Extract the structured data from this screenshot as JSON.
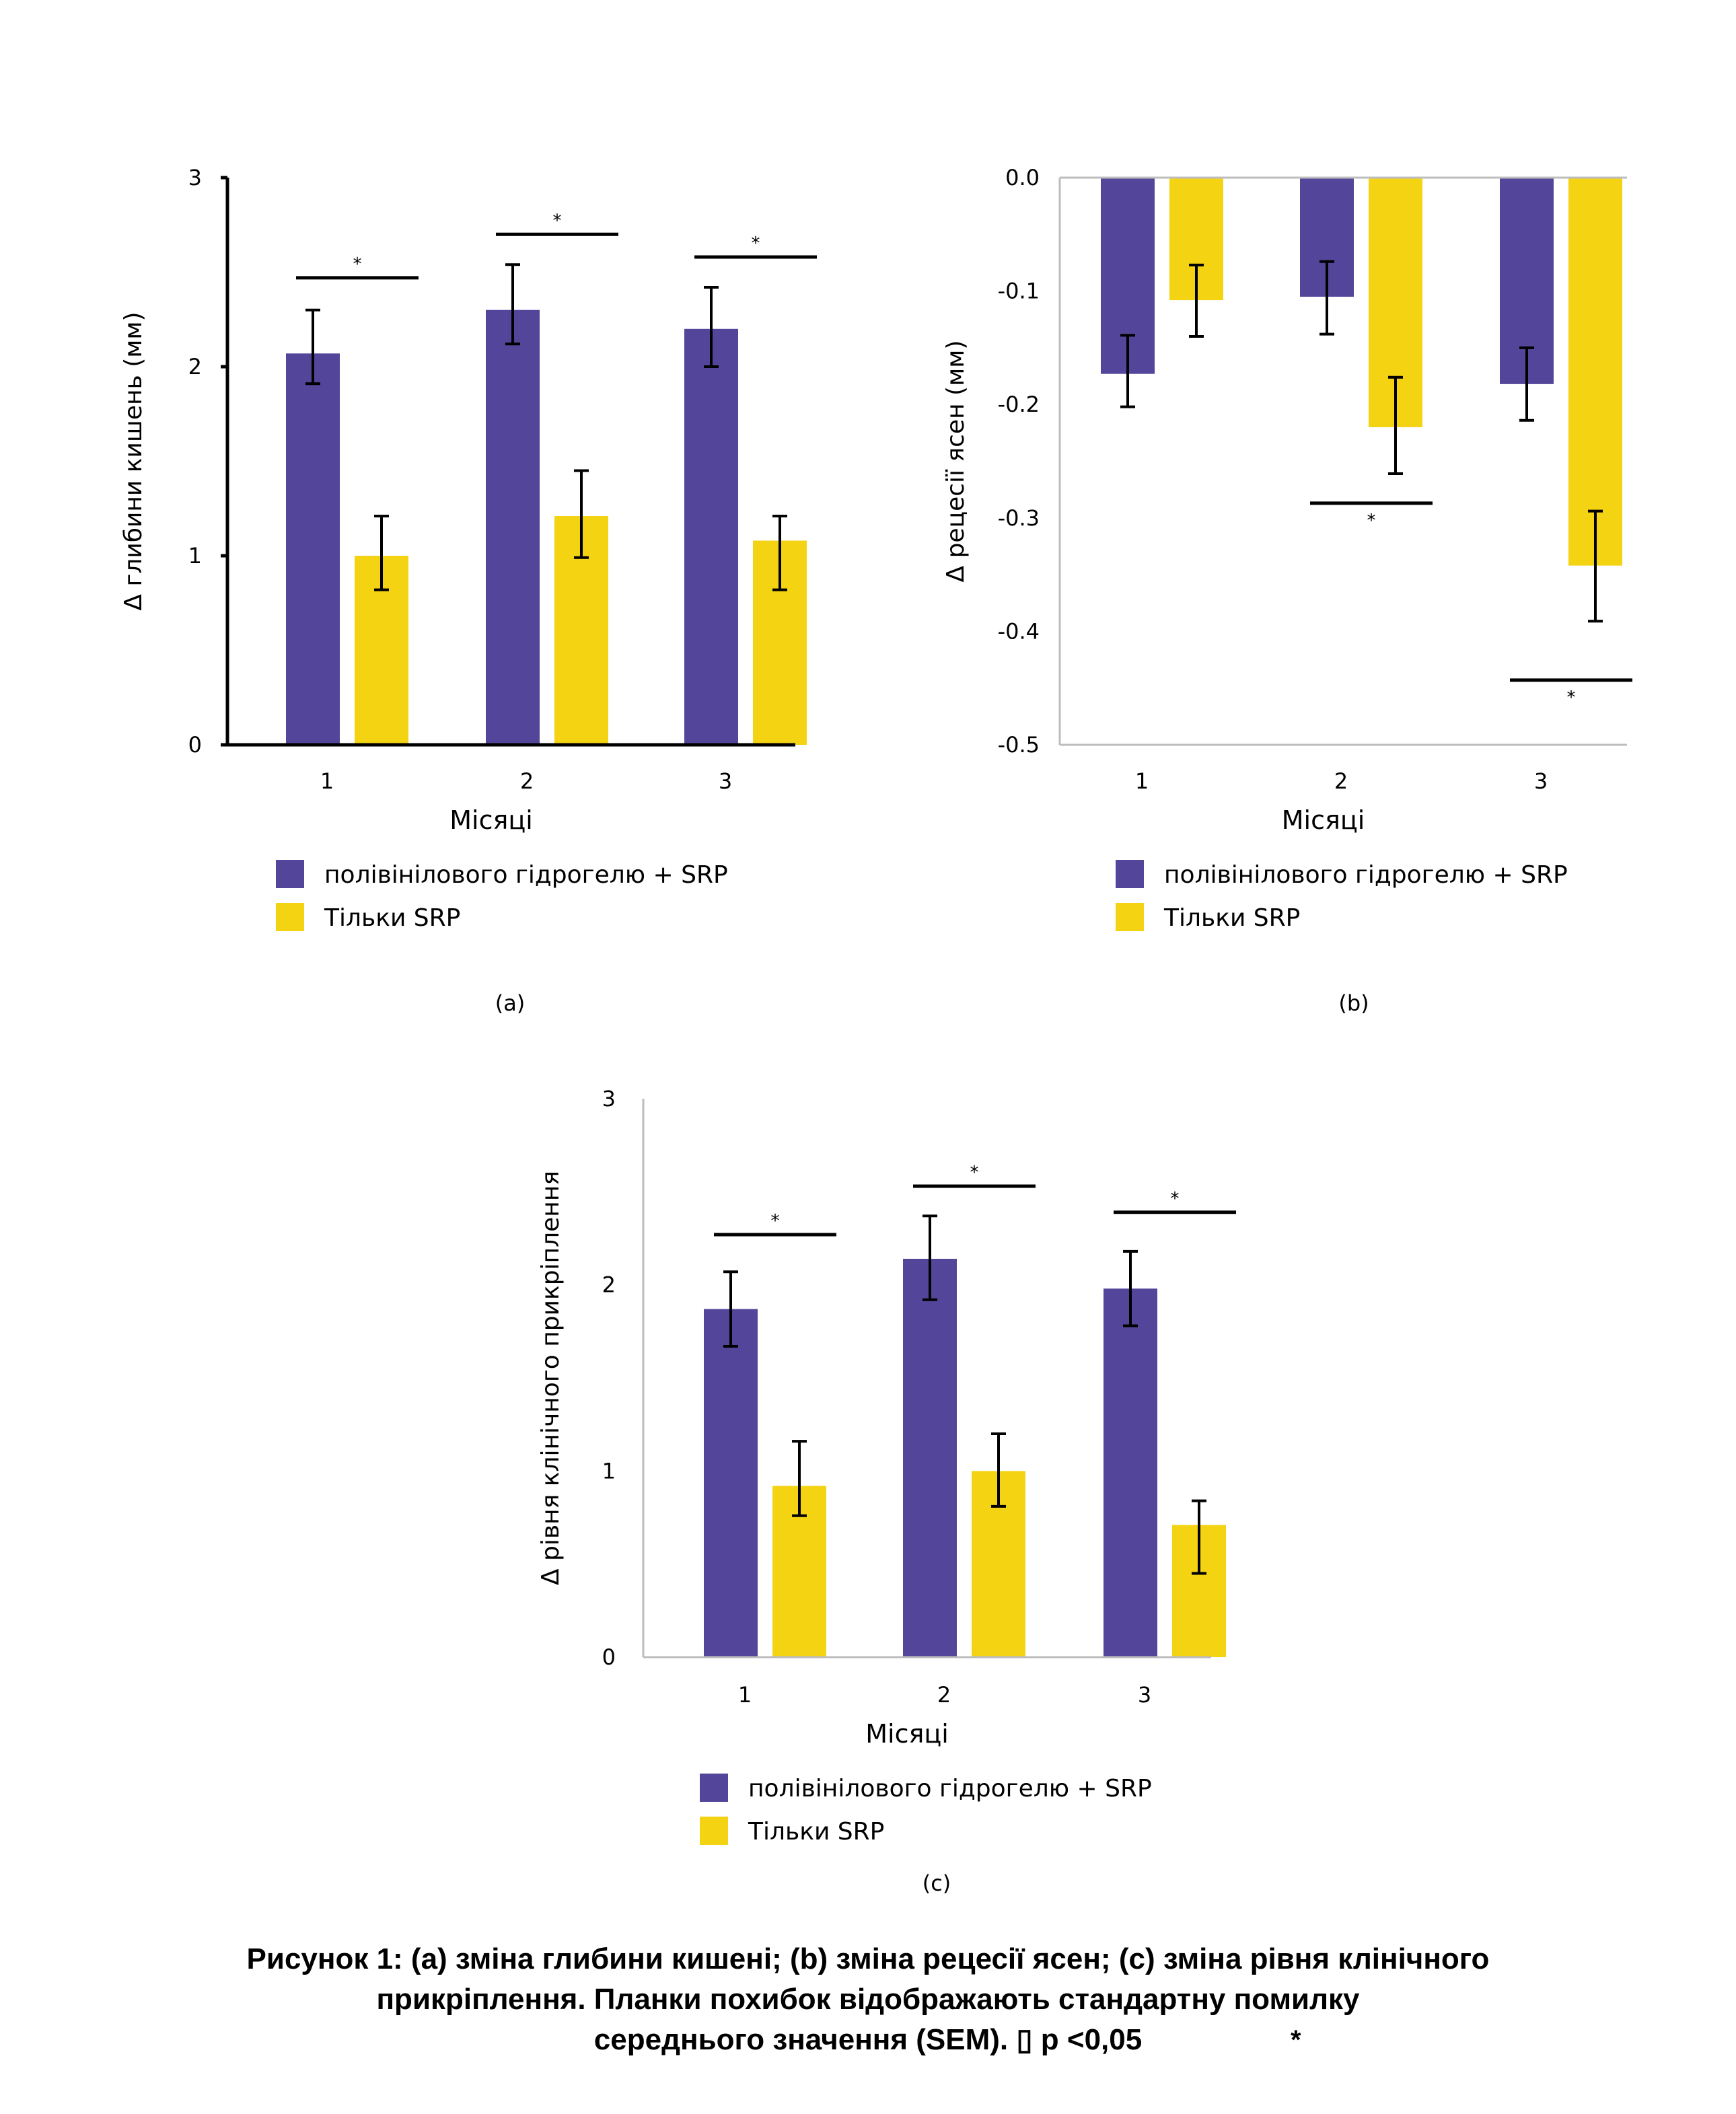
{
  "colors": {
    "series1": "#53469a",
    "series2": "#f4d313",
    "axis_dark": "#000000",
    "axis_light": "#bdbdbd",
    "error_bar": "#000000"
  },
  "legend": [
    "полівінілового гідрогелю + SRP",
    "Тільки SRP"
  ],
  "chart_data": [
    {
      "id": "a",
      "type": "bar",
      "panel_label": "(a)",
      "title": "",
      "xlabel": "Місяці",
      "ylabel": "Δ глибини кишень (мм)",
      "categories": [
        "1",
        "2",
        "3"
      ],
      "ylim": [
        0,
        3
      ],
      "yticks": [
        "0",
        "1",
        "2",
        "3"
      ],
      "ytick_values": [
        0,
        1,
        2,
        3
      ],
      "grid": false,
      "axis_style": "dark",
      "legend_position": "bottom",
      "series": [
        {
          "name": "полівінілового гідрогелю + SRP",
          "values": [
            2.07,
            2.3,
            2.2
          ],
          "err_high": [
            2.3,
            2.54,
            2.42
          ],
          "err_low": [
            1.91,
            2.12,
            2.0
          ]
        },
        {
          "name": "Тільки SRP",
          "values": [
            1.0,
            1.21,
            1.08
          ],
          "err_high": [
            1.21,
            1.45,
            1.21
          ],
          "err_low": [
            0.82,
            0.99,
            0.82
          ]
        }
      ],
      "significance": [
        {
          "category": 0,
          "y": 2.47,
          "label": "*",
          "label_pos": "above"
        },
        {
          "category": 1,
          "y": 2.7,
          "label": "*",
          "label_pos": "above"
        },
        {
          "category": 2,
          "y": 2.58,
          "label": "*",
          "label_pos": "above"
        }
      ]
    },
    {
      "id": "b",
      "type": "bar",
      "panel_label": "(b)",
      "title": "",
      "xlabel": "Місяці",
      "ylabel": "Δ рецесії ясен (мм)",
      "categories": [
        "1",
        "2",
        "3"
      ],
      "ylim": [
        -0.5,
        0.0
      ],
      "yticks": [
        "0.0",
        "-0.1",
        "-0.2",
        "-0.3",
        "-0.4",
        "-0.5"
      ],
      "ytick_values": [
        0.0,
        -0.1,
        -0.2,
        -0.3,
        -0.4,
        -0.5
      ],
      "grid": false,
      "axis_style": "light",
      "legend_position": "bottom",
      "series": [
        {
          "name": "полівінілового гідрогелю + SRP",
          "values": [
            -0.173,
            -0.105,
            -0.182
          ],
          "err_high": [
            -0.139,
            -0.074,
            -0.15
          ],
          "err_low": [
            -0.202,
            -0.138,
            -0.214
          ]
        },
        {
          "name": "Тільки SRP",
          "values": [
            -0.108,
            -0.22,
            -0.342
          ],
          "err_high": [
            -0.077,
            -0.176,
            -0.294
          ],
          "err_low": [
            -0.14,
            -0.261,
            -0.391
          ]
        }
      ],
      "significance": [
        {
          "category": 1,
          "y": -0.287,
          "label": "*",
          "label_pos": "below"
        },
        {
          "category": 2,
          "y": -0.443,
          "label": "*",
          "label_pos": "below"
        }
      ]
    },
    {
      "id": "c",
      "type": "bar",
      "panel_label": "(c)",
      "title": "",
      "xlabel": "Місяці",
      "ylabel": "Δ рівня клінічного прикріплення",
      "categories": [
        "1",
        "2",
        "3"
      ],
      "ylim": [
        0,
        3
      ],
      "yticks": [
        "0",
        "1",
        "2",
        "3"
      ],
      "ytick_values": [
        0,
        1,
        2,
        3
      ],
      "grid": false,
      "axis_style": "light",
      "legend_position": "bottom",
      "series": [
        {
          "name": "полівінілового гідрогелю + SRP",
          "values": [
            1.87,
            2.14,
            1.98
          ],
          "err_high": [
            2.07,
            2.37,
            2.18
          ],
          "err_low": [
            1.67,
            1.92,
            1.78
          ]
        },
        {
          "name": "Тільки SRP",
          "values": [
            0.92,
            1.0,
            0.71
          ],
          "err_high": [
            1.16,
            1.2,
            0.84
          ],
          "err_low": [
            0.76,
            0.81,
            0.45
          ]
        }
      ],
      "significance": [
        {
          "category": 0,
          "y": 2.27,
          "label": "*",
          "label_pos": "above"
        },
        {
          "category": 1,
          "y": 2.53,
          "label": "*",
          "label_pos": "above"
        },
        {
          "category": 2,
          "y": 2.39,
          "label": "*",
          "label_pos": "above"
        }
      ]
    }
  ],
  "caption": {
    "line1": "Рисунок 1: (a) зміна глибини кишені; (b) зміна рецесії ясен; (c) зміна рівня клінічного",
    "line2": "прикріплення. Планки похибок відображають стандартну помилку",
    "line3": "середнього значення (SEM). ▯ p <0,05",
    "star": "*"
  }
}
